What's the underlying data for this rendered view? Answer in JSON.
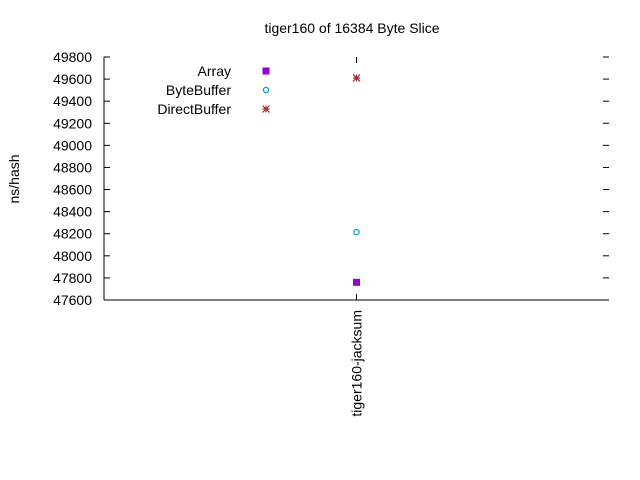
{
  "chart_data": {
    "type": "scatter",
    "title": "tiger160 of 16384 Byte Slice",
    "xlabel": "",
    "ylabel": "ns/hash",
    "categories": [
      "tiger160-jacksum"
    ],
    "ylim": [
      47600,
      49800
    ],
    "yticks": [
      47600,
      47800,
      48000,
      48200,
      48400,
      48600,
      48800,
      49000,
      49200,
      49400,
      49600,
      49800
    ],
    "grid": false,
    "legend_position": "top-left",
    "series": [
      {
        "name": "Array",
        "values": [
          47760
        ],
        "color": "#9400d3",
        "marker": "filled-square"
      },
      {
        "name": "ByteBuffer",
        "values": [
          48215
        ],
        "color": "#009ed7",
        "marker": "open-circle"
      },
      {
        "name": "DirectBuffer",
        "values": [
          49610
        ],
        "color": "#a62a2a",
        "marker": "asterisk"
      }
    ]
  }
}
